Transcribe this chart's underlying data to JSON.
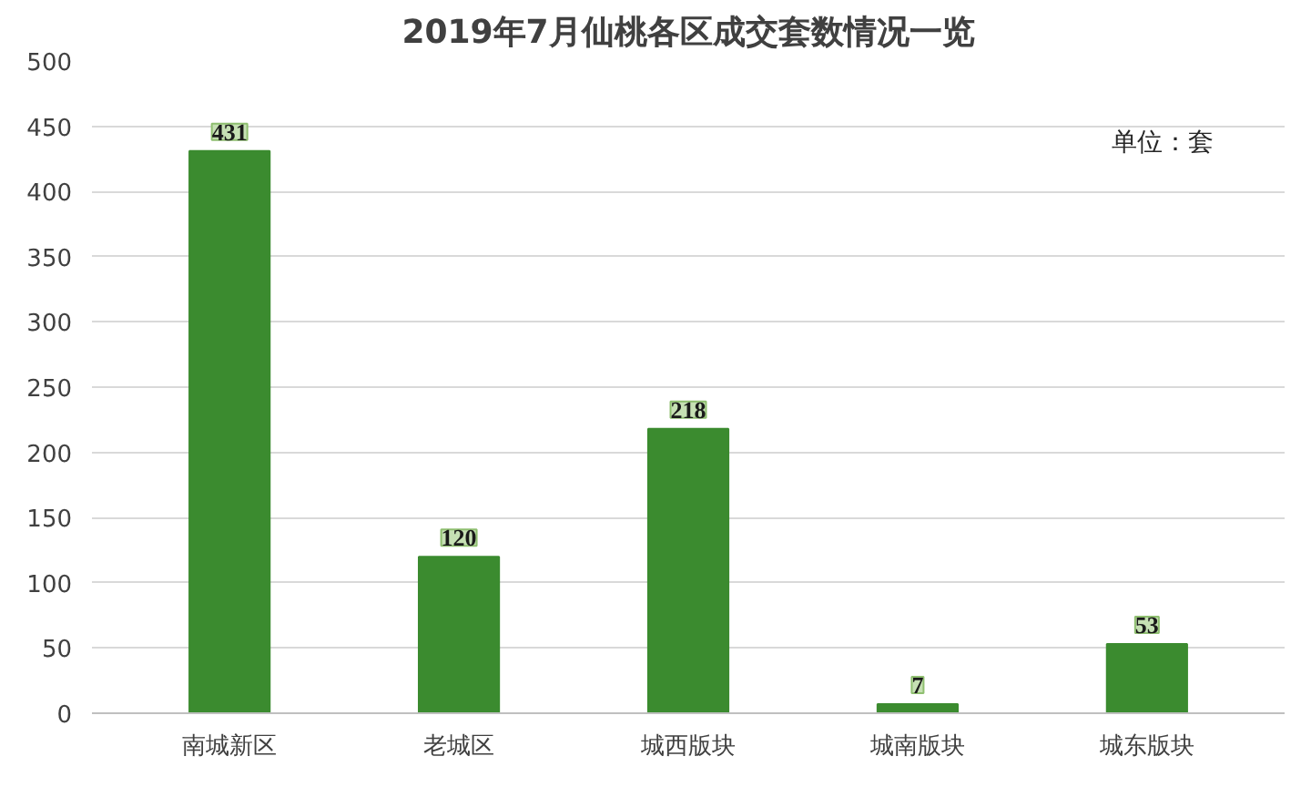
{
  "chart_data": {
    "type": "bar",
    "title": "2019年7月仙桃各区成交套数情况一览",
    "categories": [
      "南城新区",
      "老城区",
      "城西版块",
      "城南版块",
      "城东版块"
    ],
    "values": [
      431,
      120,
      218,
      7,
      53
    ],
    "color": "#3b8b2f",
    "ylim": [
      0,
      500
    ],
    "yticks": [
      0,
      50,
      100,
      150,
      200,
      250,
      300,
      350,
      400,
      450,
      500
    ],
    "grid": "y",
    "data_labels": true,
    "annotations": [
      "单位：套"
    ]
  }
}
